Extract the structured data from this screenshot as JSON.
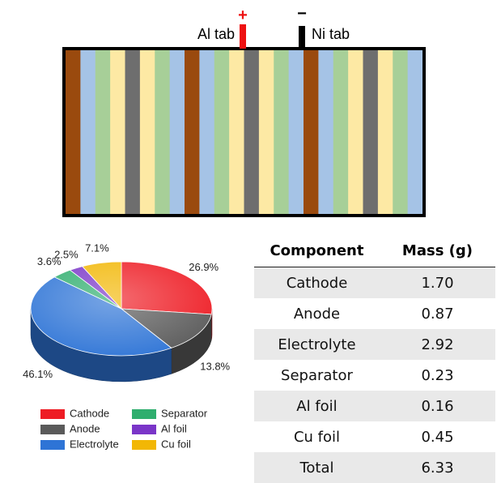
{
  "cell_diagram": {
    "tab_positive": {
      "label": "Al tab",
      "sign": "+",
      "color": "#ee1111"
    },
    "tab_negative": {
      "label": "Ni tab",
      "sign": "−",
      "color": "#000000"
    },
    "layer_colors": {
      "cu": "#9a4a0e",
      "anode_coating": "#a5c3e6",
      "separator": "#a7cf98",
      "cathode_coating": "#fde9a4",
      "al": "#6e6e6e"
    },
    "layer_sequence": [
      "cu",
      "anode_coating",
      "separator",
      "cathode_coating",
      "al",
      "cathode_coating",
      "separator",
      "anode_coating",
      "cu",
      "anode_coating",
      "separator",
      "cathode_coating",
      "al",
      "cathode_coating",
      "separator",
      "anode_coating",
      "cu",
      "anode_coating",
      "separator",
      "cathode_coating",
      "al",
      "cathode_coating",
      "separator",
      "anode_coating"
    ]
  },
  "chart_data": [
    {
      "type": "pie",
      "slices": [
        {
          "label": "Cathode",
          "value": 26.9,
          "value_label": "26.9%",
          "color": "#ee1c24"
        },
        {
          "label": "Anode",
          "value": 13.8,
          "value_label": "13.8%",
          "color": "#5a5a5a"
        },
        {
          "label": "Electrolyte",
          "value": 46.1,
          "value_label": "46.1%",
          "color": "#2e74d6"
        },
        {
          "label": "Separator",
          "value": 3.6,
          "value_label": "3.6%",
          "color": "#2fae6e"
        },
        {
          "label": "Al foil",
          "value": 2.5,
          "value_label": "2.5%",
          "color": "#7a35c8"
        },
        {
          "label": "Cu foil",
          "value": 7.1,
          "value_label": "7.1%",
          "color": "#f2b705"
        }
      ],
      "legend_placement": "bottom"
    },
    {
      "type": "table",
      "columns": [
        "Component",
        "Mass (g)"
      ],
      "rows": [
        [
          "Cathode",
          "1.70"
        ],
        [
          "Anode",
          "0.87"
        ],
        [
          "Electrolyte",
          "2.92"
        ],
        [
          "Separator",
          "0.23"
        ],
        [
          "Al foil",
          "0.16"
        ],
        [
          "Cu foil",
          "0.45"
        ],
        [
          "Total",
          "6.33"
        ]
      ]
    }
  ]
}
